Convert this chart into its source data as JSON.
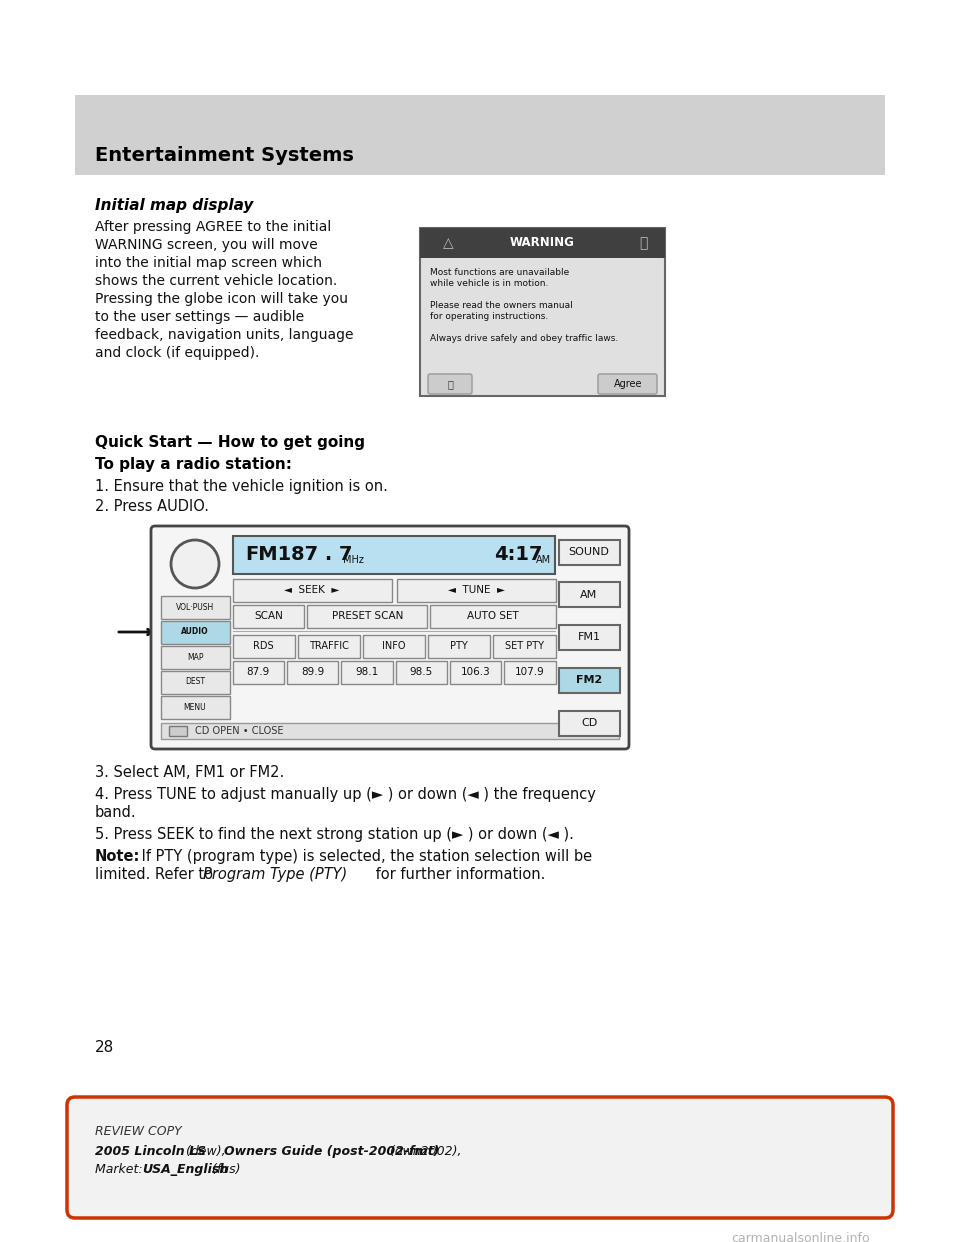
{
  "page_bg": "#ffffff",
  "header_bg": "#d0d0d0",
  "header_text": "Entertainment Systems",
  "section1_title": "Initial map display",
  "section1_body_lines": [
    "After pressing AGREE to the initial",
    "WARNING screen, you will move",
    "into the initial map screen which",
    "shows the current vehicle location.",
    "Pressing the globe icon will take you",
    "to the user settings — audible",
    "feedback, navigation units, language",
    "and clock (if equipped)."
  ],
  "warn_title": "WARNING",
  "warn_lines": [
    "Most functions are unavailable",
    "while vehicle is in motion.",
    "",
    "Please read the owners manual",
    "for operating instructions.",
    "",
    "Always drive safely and obey traffic laws."
  ],
  "section2_title": "Quick Start — How to get going",
  "section2_subtitle": "To play a radio station:",
  "step1": "1. Ensure that the vehicle ignition is on.",
  "step2": "2. Press AUDIO.",
  "step3": "3. Select AM, FM1 or FM2.",
  "step4a": "4. Press TUNE to adjust manually up (► ) or down (◄ ) the frequency",
  "step4b": "band.",
  "step5": "5. Press SEEK to find the next strong station up (► ) or down (◄ ).",
  "note_bold": "Note:",
  "note_rest": " If PTY (program type) is selected, the station selection will be",
  "note_line2a": "limited. Refer to ",
  "note_italic": "Program Type (PTY)",
  "note_line2b": " for further information.",
  "page_number": "28",
  "footer_review": "REVIEW COPY",
  "footer_b1": "2005 Lincoln LS",
  "footer_n1": " (dew), ",
  "footer_b2": "Owners Guide (post-2002-fmt)",
  "footer_n2": " (own2002),",
  "footer_n3": "Market:  ",
  "footer_b3": "USA_English",
  "footer_n4": " (fus)",
  "watermark": "carmanualsonline.info",
  "radio_fm_label": "FM1",
  "radio_freq": "87 . 7",
  "radio_freq_unit": "MHz",
  "radio_time": "4:17",
  "radio_time_unit": "AM",
  "radio_freq_presets": [
    "87.9",
    "89.9",
    "98.1",
    "98.5",
    "106.3",
    "107.9"
  ],
  "left_btns": [
    "VOL·PUSH",
    "AUDIO",
    "MAP",
    "DEST",
    "MENU"
  ],
  "right_btns": [
    "SOUND",
    "AM",
    "FM1",
    "FM2",
    "CD"
  ]
}
